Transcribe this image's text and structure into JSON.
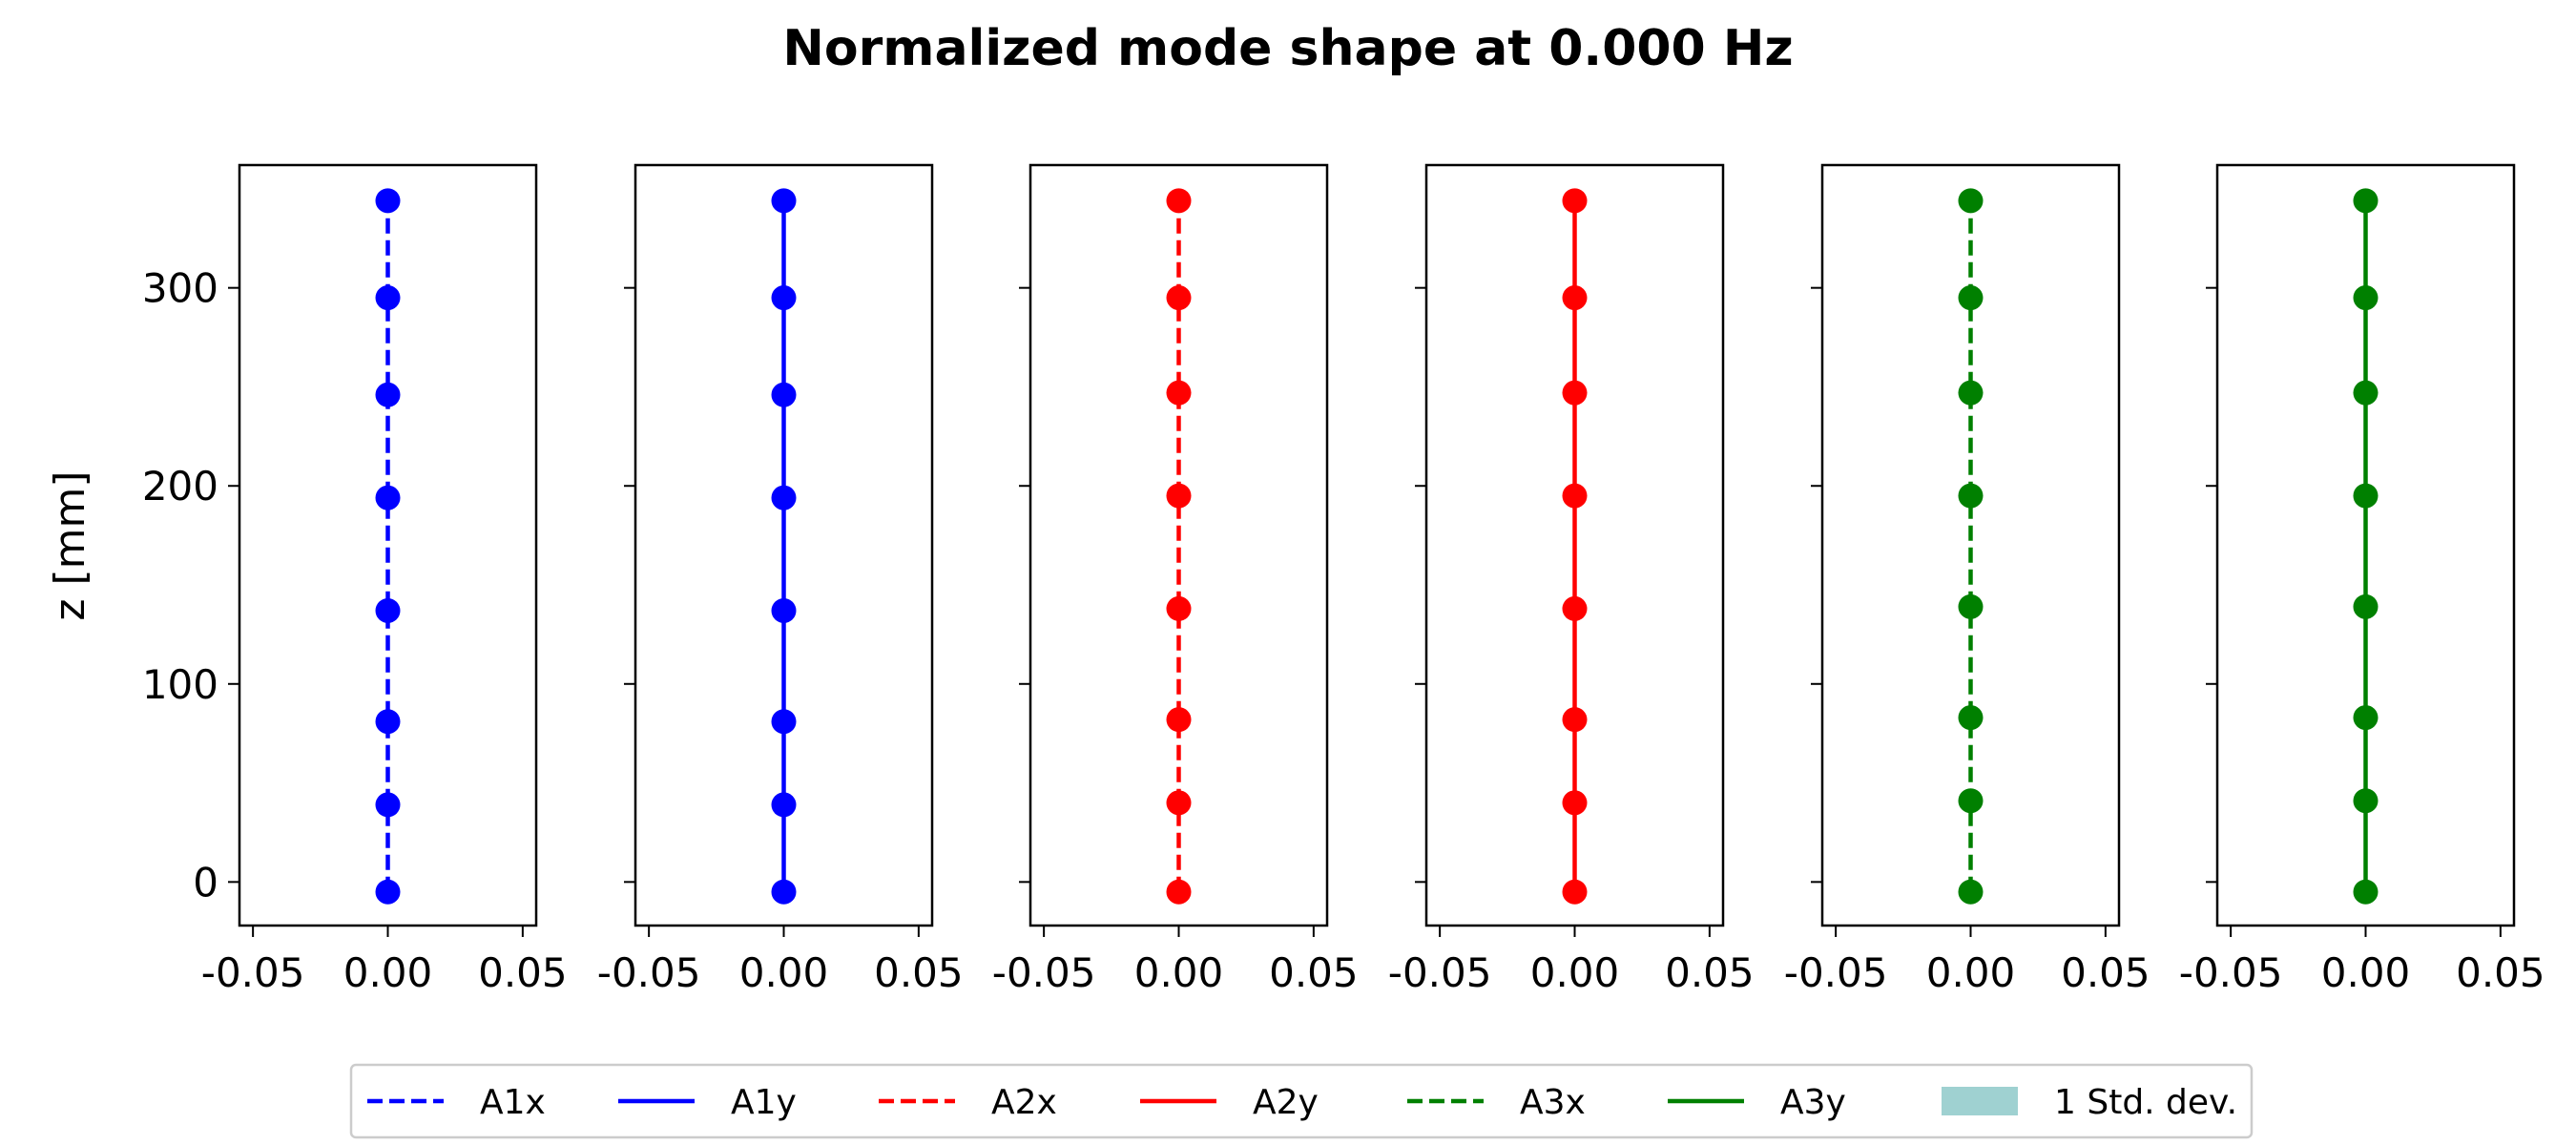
{
  "chart_data": {
    "type": "line",
    "title": "Normalized mode shape at 0.000 Hz",
    "ylabel": "z [mm]",
    "xlim": [
      -0.055,
      0.055
    ],
    "ylim": [
      -22,
      362
    ],
    "xticks": [
      -0.05,
      0.0,
      0.05
    ],
    "xtick_labels": [
      "-0.05",
      "0.00",
      "0.05"
    ],
    "yticks": [
      0,
      100,
      200,
      300
    ],
    "ytick_labels": [
      "0",
      "100",
      "200",
      "300"
    ],
    "grid": false,
    "legend_position": "bottom-center",
    "series": [
      {
        "name": "A1x",
        "color": "#0000ff",
        "linestyle": "dashed",
        "x": [
          0,
          0,
          0,
          0,
          0,
          0,
          0,
          0
        ],
        "y": [
          -5,
          39,
          81,
          137,
          194,
          246,
          295,
          344
        ]
      },
      {
        "name": "A1y",
        "color": "#0000ff",
        "linestyle": "solid",
        "x": [
          0,
          0,
          0,
          0,
          0,
          0,
          0,
          0
        ],
        "y": [
          -5,
          39,
          81,
          137,
          194,
          246,
          295,
          344
        ]
      },
      {
        "name": "A2x",
        "color": "#ff0000",
        "linestyle": "dashed",
        "x": [
          0,
          0,
          0,
          0,
          0,
          0,
          0,
          0
        ],
        "y": [
          -5,
          40,
          82,
          138,
          195,
          247,
          295,
          344
        ]
      },
      {
        "name": "A2y",
        "color": "#ff0000",
        "linestyle": "solid",
        "x": [
          0,
          0,
          0,
          0,
          0,
          0,
          0,
          0
        ],
        "y": [
          -5,
          40,
          82,
          138,
          195,
          247,
          295,
          344
        ]
      },
      {
        "name": "A3x",
        "color": "#008000",
        "linestyle": "dashed",
        "x": [
          0,
          0,
          0,
          0,
          0,
          0,
          0,
          0
        ],
        "y": [
          -5,
          41,
          83,
          139,
          195,
          247,
          295,
          344
        ]
      },
      {
        "name": "A3y",
        "color": "#008000",
        "linestyle": "solid",
        "x": [
          0,
          0,
          0,
          0,
          0,
          0,
          0,
          0
        ],
        "y": [
          -5,
          41,
          83,
          139,
          195,
          247,
          295,
          344
        ]
      }
    ],
    "legend": [
      {
        "label": "A1x",
        "color": "#0000ff",
        "style": "dashed"
      },
      {
        "label": "A1y",
        "color": "#0000ff",
        "style": "solid"
      },
      {
        "label": "A2x",
        "color": "#ff0000",
        "style": "dashed"
      },
      {
        "label": "A2y",
        "color": "#ff0000",
        "style": "solid"
      },
      {
        "label": "A3x",
        "color": "#008000",
        "style": "dashed"
      },
      {
        "label": "A3y",
        "color": "#008000",
        "style": "solid"
      },
      {
        "label": "1 Std. dev.",
        "color": "#9fd1d1",
        "style": "patch"
      }
    ]
  }
}
